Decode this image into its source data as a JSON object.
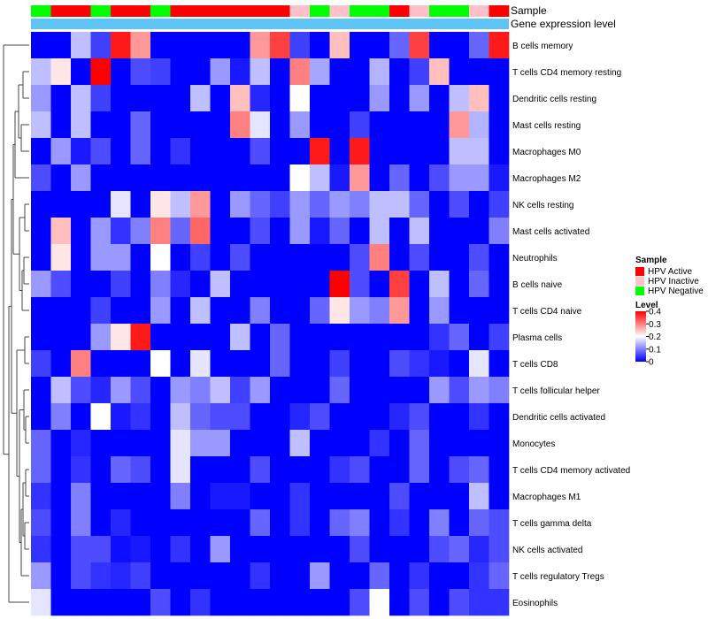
{
  "chart_data": {
    "type": "heatmap",
    "title": "",
    "annotation_tracks": [
      {
        "name": "Sample",
        "legend_title": "Sample"
      },
      {
        "name": "Gene expression level"
      }
    ],
    "sample_legend": [
      {
        "label": "HPV Active",
        "color": "#ff0000"
      },
      {
        "label": "HPV Inactive",
        "color": "#ffc0cb"
      },
      {
        "label": "HPV Negative",
        "color": "#00ff00"
      }
    ],
    "sample_groups": [
      "negative",
      "active",
      "active",
      "negative",
      "active",
      "active",
      "negative",
      "active",
      "active",
      "active",
      "active",
      "active",
      "active",
      "inactive",
      "negative",
      "inactive",
      "negative",
      "negative",
      "active",
      "inactive",
      "negative",
      "negative",
      "inactive",
      "active"
    ],
    "expression_bar_color": "#5fc5f7",
    "color_scale": {
      "title": "Level",
      "min": 0,
      "max": 0.4,
      "ticks": [
        "0",
        "0.1",
        "0.2",
        "0.3",
        "0.4"
      ],
      "low_color": "#0000ff",
      "mid_color": "#ffffff",
      "high_color": "#ff0000"
    },
    "rows": [
      "B cells memory",
      "T cells CD4 memory resting",
      "Dendritic cells resting",
      "Mast cells resting",
      "Macrophages M0",
      "Macrophages M2",
      "NK cells resting",
      "Mast cells activated",
      "Neutrophils",
      "B cells naive",
      "T cells CD4 naive",
      "Plasma cells",
      "T cells CD8",
      "T cells follicular helper",
      "Dendritic cells activated",
      "Monocytes",
      "T cells CD4 memory activated",
      "Macrophages M1",
      "T cells gamma delta",
      "NK cells activated",
      "T cells regulatory  Tregs",
      "Eosinophils"
    ],
    "values": [
      [
        0,
        0,
        0.15,
        0.05,
        0.38,
        0.28,
        0,
        0,
        0,
        0,
        0,
        0.28,
        0.35,
        0.05,
        0,
        0.25,
        0,
        0,
        0.08,
        0.35,
        0,
        0,
        0.08,
        0.38
      ],
      [
        0.15,
        0.22,
        0,
        0.4,
        0,
        0.06,
        0.05,
        0,
        0,
        0.12,
        0.02,
        0.15,
        0,
        0.3,
        0.13,
        0,
        0,
        0.14,
        0,
        0.05,
        0.25,
        0,
        0,
        0
      ],
      [
        0.12,
        0,
        0.15,
        0.05,
        0,
        0,
        0,
        0,
        0.15,
        0,
        0.25,
        0.03,
        0,
        0.2,
        0,
        0,
        0,
        0.12,
        0,
        0.12,
        0,
        0.15,
        0.25,
        0
      ],
      [
        0.15,
        0,
        0.15,
        0,
        0,
        0.08,
        0,
        0,
        0,
        0,
        0.3,
        0.18,
        0,
        0.12,
        0,
        0,
        0.05,
        0,
        0,
        0,
        0,
        0.28,
        0.14,
        0
      ],
      [
        0,
        0.12,
        0.02,
        0.06,
        0,
        0.08,
        0,
        0.04,
        0,
        0,
        0,
        0.06,
        0,
        0,
        0.38,
        0,
        0.38,
        0,
        0,
        0,
        0,
        0.15,
        0.15,
        0
      ],
      [
        0.06,
        0,
        0.12,
        0,
        0,
        0,
        0,
        0,
        0,
        0,
        0,
        0,
        0,
        0.2,
        0.15,
        0.02,
        0.28,
        0,
        0.08,
        0,
        0.06,
        0.12,
        0.12,
        0.02
      ],
      [
        0,
        0,
        0,
        0,
        0.18,
        0,
        0.22,
        0.15,
        0.28,
        0,
        0.12,
        0.08,
        0.05,
        0.12,
        0.08,
        0.12,
        0.1,
        0.15,
        0.15,
        0.08,
        0,
        0.06,
        0,
        0.05
      ],
      [
        0,
        0.25,
        0,
        0.12,
        0.04,
        0.1,
        0.3,
        0.08,
        0.32,
        0,
        0,
        0.06,
        0,
        0.12,
        0.02,
        0.08,
        0,
        0.15,
        0,
        0.15,
        0,
        0,
        0,
        0.1
      ],
      [
        0,
        0.22,
        0,
        0.12,
        0.12,
        0,
        0.2,
        0,
        0.05,
        0,
        0.06,
        0,
        0,
        0,
        0,
        0,
        0.06,
        0.3,
        0,
        0.06,
        0,
        0,
        0.06,
        0
      ],
      [
        0.12,
        0.06,
        0,
        0,
        0.05,
        0,
        0.1,
        0.03,
        0,
        0.15,
        0,
        0,
        0,
        0,
        0,
        0.4,
        0.06,
        0,
        0.35,
        0,
        0.15,
        0,
        0.08,
        0
      ],
      [
        0,
        0,
        0,
        0.05,
        0,
        0,
        0.12,
        0,
        0.15,
        0,
        0,
        0.1,
        0,
        0,
        0.08,
        0.22,
        0.12,
        0.1,
        0.28,
        0,
        0.12,
        0,
        0,
        0
      ],
      [
        0,
        0,
        0,
        0.12,
        0.22,
        0.38,
        0,
        0,
        0,
        0,
        0.15,
        0,
        0.08,
        0,
        0,
        0,
        0,
        0,
        0,
        0,
        0.04,
        0.08,
        0,
        0.05
      ],
      [
        0.05,
        0,
        0.3,
        0,
        0,
        0,
        0.2,
        0,
        0.18,
        0,
        0,
        0,
        0.08,
        0,
        0,
        0.05,
        0,
        0,
        0.06,
        0.04,
        0.02,
        0,
        0.18,
        0
      ],
      [
        0,
        0.15,
        0.06,
        0.03,
        0.12,
        0.06,
        0,
        0.12,
        0.1,
        0.15,
        0.05,
        0.12,
        0,
        0,
        0,
        0.08,
        0,
        0,
        0,
        0,
        0.12,
        0.06,
        0.12,
        0.1
      ],
      [
        0,
        0.1,
        0,
        0.2,
        0.02,
        0.04,
        0,
        0.15,
        0.08,
        0.06,
        0.06,
        0,
        0,
        0.03,
        0.06,
        0,
        0,
        0,
        0.03,
        0.06,
        0,
        0,
        0.04,
        0
      ],
      [
        0.08,
        0,
        0.03,
        0,
        0,
        0,
        0,
        0.18,
        0.12,
        0.12,
        0,
        0,
        0,
        0.15,
        0,
        0,
        0,
        0.04,
        0,
        0.08,
        0,
        0,
        0,
        0
      ],
      [
        0.08,
        0,
        0.04,
        0,
        0.08,
        0.06,
        0,
        0.18,
        0,
        0,
        0,
        0.06,
        0,
        0,
        0,
        0.04,
        0.06,
        0,
        0,
        0.08,
        0,
        0.06,
        0.08,
        0
      ],
      [
        0.04,
        0,
        0.1,
        0,
        0,
        0,
        0,
        0.1,
        0,
        0.02,
        0.02,
        0,
        0,
        0.04,
        0,
        0,
        0,
        0,
        0.06,
        0,
        0,
        0,
        0.15,
        0
      ],
      [
        0.06,
        0,
        0.1,
        0,
        0.03,
        0,
        0,
        0,
        0,
        0,
        0,
        0.08,
        0,
        0.04,
        0,
        0.08,
        0.1,
        0,
        0.04,
        0,
        0.1,
        0,
        0.08,
        0.06
      ],
      [
        0.04,
        0,
        0.06,
        0.06,
        0.01,
        0.02,
        0,
        0.04,
        0,
        0.12,
        0,
        0,
        0,
        0,
        0,
        0,
        0.06,
        0,
        0,
        0,
        0.06,
        0.08,
        0.03,
        0.06
      ],
      [
        0.12,
        0,
        0.06,
        0.04,
        0.03,
        0.05,
        0,
        0,
        0,
        0,
        0,
        0.04,
        0,
        0,
        0.12,
        0,
        0,
        0.08,
        0,
        0.04,
        0,
        0,
        0.04,
        0.08
      ],
      [
        0.18,
        0,
        0,
        0,
        0,
        0,
        0.06,
        0,
        0.04,
        0,
        0,
        0,
        0,
        0,
        0,
        0,
        0.06,
        0.2,
        0,
        0.06,
        0,
        0.06,
        0.04,
        0.04
      ]
    ]
  }
}
